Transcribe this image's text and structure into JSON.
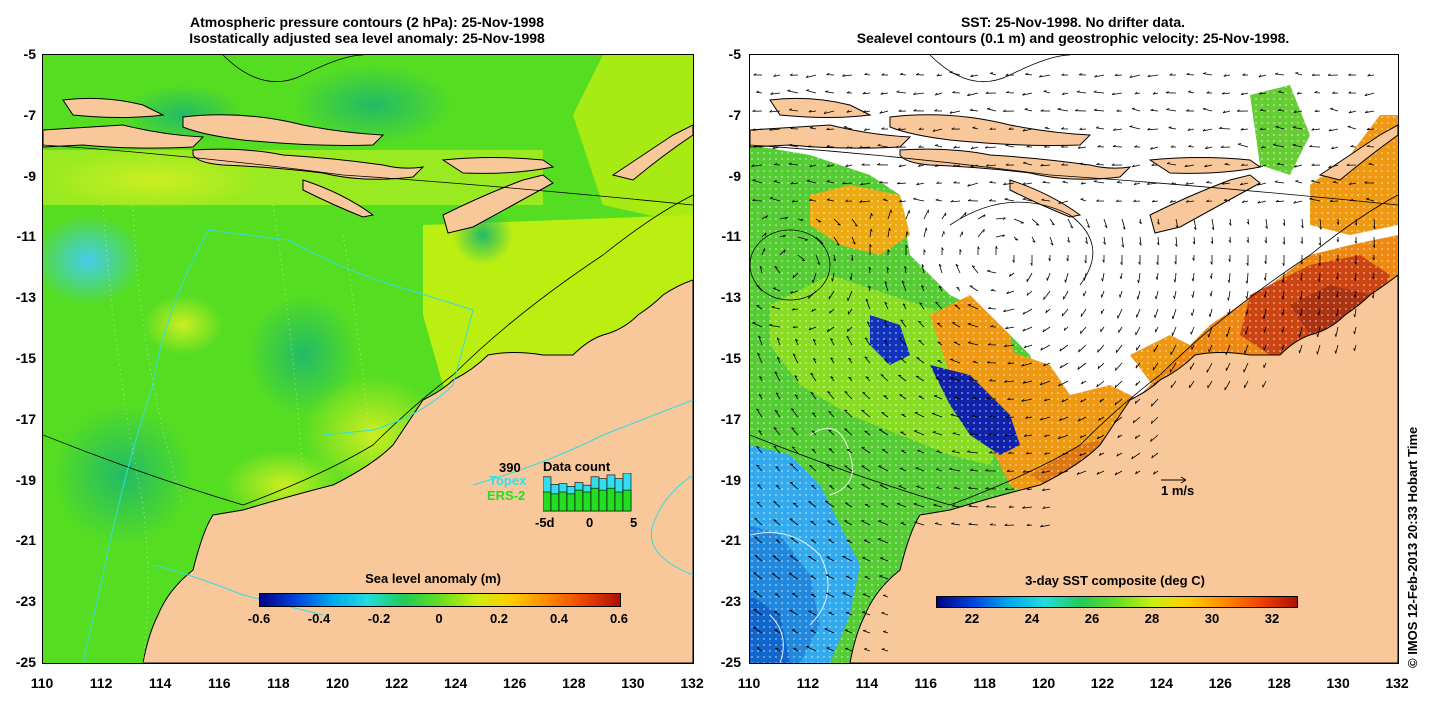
{
  "left_panel": {
    "title_line1": "Atmospheric pressure contours (2 hPa): 25-Nov-1998",
    "title_line2": "Isostatically adjusted sea level anomaly: 25-Nov-1998",
    "colorbar": {
      "label": "Sea level anomaly (m)",
      "ticks": [
        "-0.6",
        "-0.4",
        "-0.2",
        "0",
        "0.2",
        "0.4",
        "0.6"
      ]
    },
    "data_count": {
      "title": "Data count",
      "total": "390",
      "topex_label": "Topex",
      "ers2_label": "ERS-2",
      "axis_ticks": [
        "-5d",
        "0",
        "5"
      ],
      "topex_color": "#33ddee",
      "ers2_color": "#22dd22",
      "topex_fraction": [
        0.9,
        0.7,
        0.72,
        0.65,
        0.75,
        0.68,
        0.9,
        0.85,
        0.95,
        0.85,
        1.0
      ],
      "ers2_fraction": [
        0.5,
        0.45,
        0.5,
        0.45,
        0.55,
        0.5,
        0.6,
        0.55,
        0.6,
        0.5,
        0.55
      ]
    }
  },
  "right_panel": {
    "title_line1": "SST: 25-Nov-1998. No drifter data.",
    "title_line2": "Sealevel contours (0.1 m) and geostrophic velocity: 25-Nov-1998.",
    "colorbar": {
      "label": "3-day SST composite (deg C)",
      "ticks": [
        "22",
        "24",
        "26",
        "28",
        "30",
        "32"
      ]
    },
    "velocity_scale_label": "1 m/s"
  },
  "axes": {
    "y_ticks": [
      "-5",
      "-7",
      "-9",
      "-11",
      "-13",
      "-15",
      "-17",
      "-19",
      "-21",
      "-23",
      "-25"
    ],
    "x_ticks": [
      "110",
      "112",
      "114",
      "116",
      "118",
      "120",
      "122",
      "124",
      "126",
      "128",
      "130",
      "132"
    ]
  },
  "credit": "© IMOS 12-Feb-2013 20:33 Hobart Time",
  "colors": {
    "land": "#f9c89a",
    "anomaly_base": "#55dd22",
    "anomaly_high": "#bbee11",
    "sst_warm": "#ee8811",
    "sst_cool": "#33aaee"
  }
}
